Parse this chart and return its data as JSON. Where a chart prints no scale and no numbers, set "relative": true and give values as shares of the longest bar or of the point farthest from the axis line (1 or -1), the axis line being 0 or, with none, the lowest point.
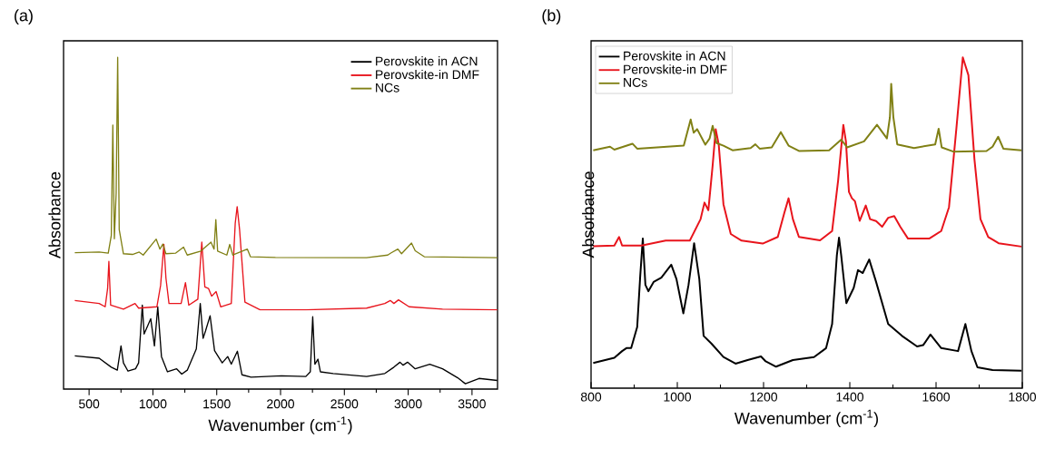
{
  "chart_data": [
    {
      "type": "line",
      "title": "(a)",
      "xlabel": "Wavenumber (cm$^{-1}$)",
      "ylabel": "Absorbance",
      "relative": true,
      "legend": "top right",
      "xlim": [
        300,
        3700
      ],
      "xticks": [
        500,
        1000,
        1500,
        2000,
        2500,
        3000,
        3500
      ],
      "series": [
        {
          "name": "Perovskite in ACN",
          "color": "#000000",
          "x": [
            388,
            579,
            674,
            721,
            750,
            769,
            805,
            864,
            888,
            917,
            931,
            983,
            1012,
            1038,
            1067,
            1114,
            1186,
            1226,
            1269,
            1340,
            1371,
            1393,
            1412,
            1448,
            1483,
            1543,
            1586,
            1614,
            1662,
            1698,
            1769,
            2007,
            2198,
            2233,
            2252,
            2269,
            2293,
            2312,
            2412,
            2674,
            2817,
            2888,
            2936,
            2960,
            2995,
            3055,
            3169,
            3269,
            3388,
            3448,
            3555,
            3698
          ],
          "values": [
            0.1,
            0.093,
            0.066,
            0.057,
            0.13,
            0.079,
            0.054,
            0.061,
            0.079,
            0.253,
            0.166,
            0.212,
            0.13,
            0.248,
            0.098,
            0.052,
            0.061,
            0.045,
            0.057,
            0.121,
            0.258,
            0.153,
            0.175,
            0.221,
            0.116,
            0.079,
            0.098,
            0.075,
            0.114,
            0.043,
            0.036,
            0.04,
            0.038,
            0.052,
            0.218,
            0.075,
            0.09,
            0.052,
            0.047,
            0.038,
            0.047,
            0.066,
            0.081,
            0.072,
            0.081,
            0.061,
            0.075,
            0.061,
            0.034,
            0.016,
            0.032,
            0.026
          ]
        },
        {
          "name": "Perovskite-in DMF",
          "color": "#e8141c",
          "x": [
            388,
            579,
            626,
            645,
            655,
            669,
            769,
            860,
            888,
            1031,
            1060,
            1086,
            1102,
            1126,
            1221,
            1255,
            1281,
            1352,
            1383,
            1407,
            1436,
            1460,
            1495,
            1531,
            1614,
            1645,
            1660,
            1679,
            1721,
            1840,
            2198,
            2674,
            2817,
            2860,
            2888,
            2924,
            3007,
            3269,
            3698
          ],
          "values": [
            0.267,
            0.258,
            0.248,
            0.303,
            0.385,
            0.253,
            0.241,
            0.258,
            0.244,
            0.248,
            0.312,
            0.436,
            0.335,
            0.258,
            0.258,
            0.321,
            0.253,
            0.271,
            0.443,
            0.308,
            0.303,
            0.28,
            0.294,
            0.248,
            0.258,
            0.5,
            0.55,
            0.481,
            0.262,
            0.239,
            0.239,
            0.244,
            0.258,
            0.267,
            0.258,
            0.269,
            0.248,
            0.241,
            0.239
          ]
        },
        {
          "name": "NCs",
          "color": "#808015",
          "x": [
            388,
            579,
            650,
            674,
            686,
            698,
            712,
            724,
            736,
            769,
            840,
            893,
            924,
            1026,
            1055,
            1078,
            1102,
            1179,
            1240,
            1269,
            1376,
            1455,
            1479,
            1493,
            1507,
            1579,
            1602,
            1626,
            1740,
            1764,
            1960,
            2674,
            2840,
            2864,
            2919,
            2948,
            3026,
            3055,
            3126,
            3698
          ],
          "values": [
            0.411,
            0.413,
            0.41,
            0.463,
            0.796,
            0.453,
            0.591,
            1.0,
            0.481,
            0.408,
            0.406,
            0.413,
            0.404,
            0.452,
            0.422,
            0.437,
            0.408,
            0.41,
            0.428,
            0.404,
            0.416,
            0.443,
            0.422,
            0.511,
            0.416,
            0.404,
            0.436,
            0.404,
            0.422,
            0.399,
            0.397,
            0.396,
            0.404,
            0.41,
            0.422,
            0.408,
            0.44,
            0.417,
            0.399,
            0.396
          ]
        }
      ]
    },
    {
      "type": "line",
      "title": "(b)",
      "xlabel": "Wavenumber (cm$^{-1}$)",
      "ylabel": "Absorbance",
      "relative": true,
      "legend": "top left",
      "xlim": [
        800,
        1800
      ],
      "xticks": [
        800,
        1000,
        1200,
        1400,
        1600,
        1800
      ],
      "series": [
        {
          "name": "Perovskite in ACN",
          "color": "#000000",
          "x": [
            805,
            854,
            872,
            882,
            893,
            907,
            914,
            920,
            926,
            933,
            945,
            963,
            986,
            998,
            1014,
            1026,
            1039,
            1051,
            1061,
            1079,
            1107,
            1135,
            1163,
            1194,
            1205,
            1229,
            1268,
            1317,
            1345,
            1359,
            1370,
            1375,
            1380,
            1392,
            1409,
            1419,
            1430,
            1445,
            1461,
            1489,
            1521,
            1556,
            1570,
            1587,
            1612,
            1651,
            1668,
            1682,
            1696,
            1731,
            1798
          ],
          "values": [
            0.076,
            0.092,
            0.112,
            0.121,
            0.121,
            0.185,
            0.339,
            0.452,
            0.312,
            0.293,
            0.321,
            0.334,
            0.373,
            0.33,
            0.226,
            0.312,
            0.438,
            0.33,
            0.158,
            0.135,
            0.094,
            0.074,
            0.085,
            0.096,
            0.081,
            0.065,
            0.085,
            0.094,
            0.121,
            0.194,
            0.402,
            0.455,
            0.402,
            0.257,
            0.303,
            0.357,
            0.348,
            0.389,
            0.321,
            0.194,
            0.158,
            0.126,
            0.13,
            0.162,
            0.121,
            0.112,
            0.194,
            0.112,
            0.063,
            0.055,
            0.053
          ]
        },
        {
          "name": "Perovskite-in DMF",
          "color": "#e8141c",
          "x": [
            805,
            854,
            865,
            872,
            917,
            973,
            1029,
            1054,
            1063,
            1072,
            1082,
            1089,
            1096,
            1107,
            1124,
            1149,
            1198,
            1233,
            1248,
            1258,
            1268,
            1282,
            1331,
            1359,
            1373,
            1385,
            1391,
            1398,
            1405,
            1412,
            1423,
            1437,
            1447,
            1461,
            1475,
            1489,
            1503,
            1517,
            1535,
            1584,
            1612,
            1630,
            1647,
            1662,
            1675,
            1689,
            1703,
            1721,
            1731,
            1745,
            1798
          ],
          "values": [
            0.429,
            0.431,
            0.457,
            0.431,
            0.431,
            0.446,
            0.446,
            0.511,
            0.561,
            0.538,
            0.674,
            0.783,
            0.737,
            0.556,
            0.466,
            0.446,
            0.437,
            0.457,
            0.529,
            0.574,
            0.511,
            0.457,
            0.447,
            0.475,
            0.629,
            0.796,
            0.746,
            0.593,
            0.574,
            0.565,
            0.506,
            0.552,
            0.511,
            0.505,
            0.488,
            0.515,
            0.52,
            0.488,
            0.452,
            0.452,
            0.475,
            0.547,
            0.783,
            1.0,
            0.946,
            0.692,
            0.511,
            0.457,
            0.449,
            0.438,
            0.428
          ]
        },
        {
          "name": "NCs",
          "color": "#808015",
          "x": [
            805,
            844,
            854,
            896,
            907,
            1015,
            1031,
            1038,
            1046,
            1065,
            1075,
            1082,
            1091,
            1107,
            1128,
            1170,
            1181,
            1191,
            1219,
            1240,
            1258,
            1282,
            1352,
            1380,
            1394,
            1433,
            1463,
            1486,
            1493,
            1496,
            1501,
            1510,
            1549,
            1598,
            1606,
            1613,
            1640,
            1717,
            1731,
            1744,
            1756,
            1798
          ],
          "values": [
            0.719,
            0.73,
            0.721,
            0.739,
            0.724,
            0.733,
            0.812,
            0.772,
            0.783,
            0.736,
            0.755,
            0.793,
            0.741,
            0.733,
            0.719,
            0.726,
            0.737,
            0.724,
            0.728,
            0.774,
            0.733,
            0.717,
            0.719,
            0.751,
            0.728,
            0.746,
            0.796,
            0.755,
            0.819,
            0.92,
            0.819,
            0.737,
            0.726,
            0.737,
            0.784,
            0.728,
            0.715,
            0.717,
            0.73,
            0.76,
            0.724,
            0.719
          ]
        }
      ]
    }
  ]
}
